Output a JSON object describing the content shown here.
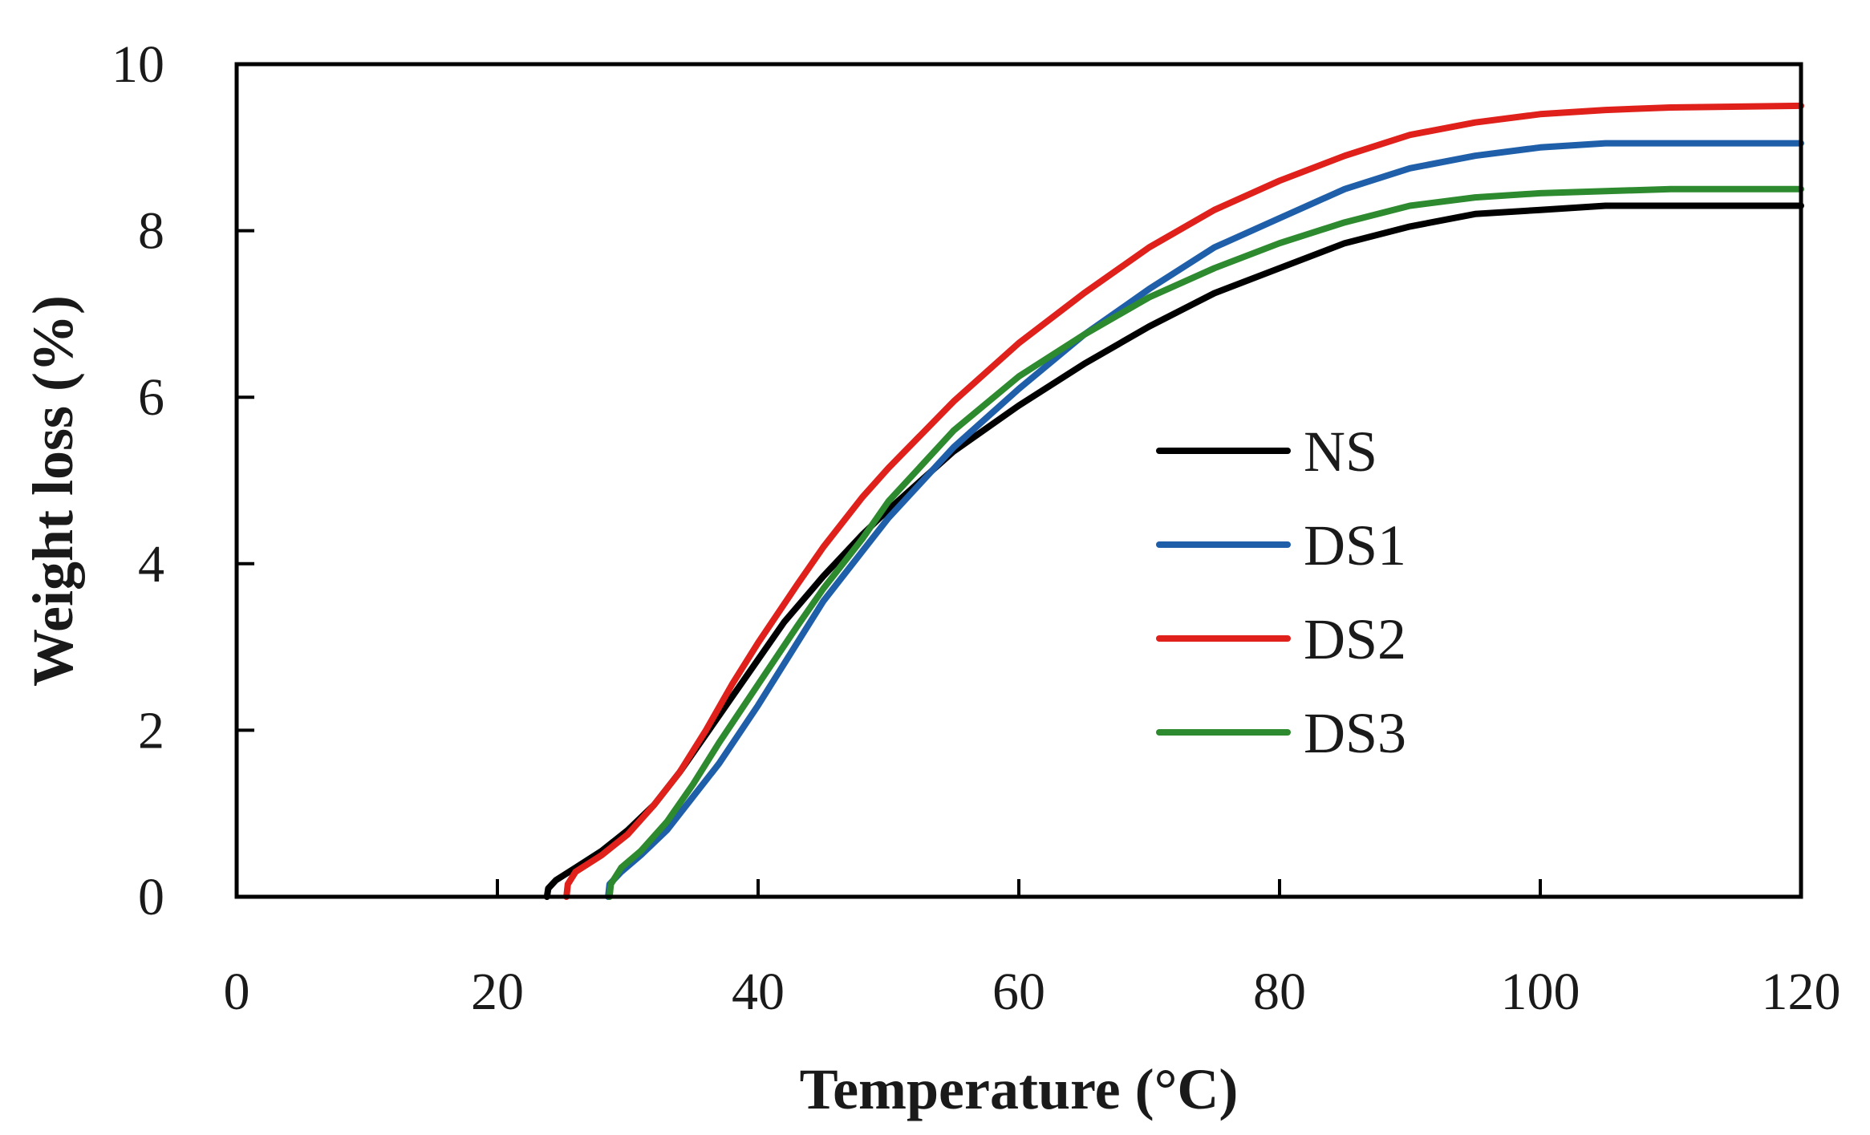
{
  "chart_data": {
    "type": "line",
    "title": "",
    "xlabel": "Temperature (°C)",
    "ylabel": "Weight loss (%)",
    "xlim": [
      0,
      120
    ],
    "ylim": [
      0,
      10
    ],
    "xticks": [
      0,
      20,
      40,
      60,
      80,
      100,
      120
    ],
    "yticks": [
      0,
      2,
      4,
      6,
      8,
      10
    ],
    "xtick_labels": [
      "0",
      "20",
      "40",
      "60",
      "80",
      "100",
      "120"
    ],
    "ytick_labels": [
      "0",
      "2",
      "4",
      "6",
      "8",
      "10"
    ],
    "grid": false,
    "legend": {
      "position": "center-right"
    },
    "series": [
      {
        "name": "NS",
        "color": "#000000",
        "points": [
          [
            23.8,
            0
          ],
          [
            23.9,
            0.1
          ],
          [
            24.5,
            0.2
          ],
          [
            26,
            0.35
          ],
          [
            28,
            0.55
          ],
          [
            30,
            0.8
          ],
          [
            32,
            1.1
          ],
          [
            34,
            1.5
          ],
          [
            36,
            1.95
          ],
          [
            38,
            2.4
          ],
          [
            40,
            2.85
          ],
          [
            42,
            3.3
          ],
          [
            45,
            3.85
          ],
          [
            48,
            4.35
          ],
          [
            50,
            4.65
          ],
          [
            55,
            5.35
          ],
          [
            60,
            5.9
          ],
          [
            65,
            6.4
          ],
          [
            70,
            6.85
          ],
          [
            75,
            7.25
          ],
          [
            80,
            7.55
          ],
          [
            85,
            7.85
          ],
          [
            90,
            8.05
          ],
          [
            95,
            8.2
          ],
          [
            100,
            8.25
          ],
          [
            105,
            8.3
          ],
          [
            110,
            8.3
          ],
          [
            120,
            8.3
          ]
        ]
      },
      {
        "name": "DS1",
        "color": "#1f5faa",
        "points": [
          [
            28.5,
            0
          ],
          [
            28.6,
            0.15
          ],
          [
            29.5,
            0.3
          ],
          [
            31,
            0.5
          ],
          [
            33,
            0.8
          ],
          [
            35,
            1.2
          ],
          [
            37,
            1.6
          ],
          [
            40,
            2.3
          ],
          [
            43,
            3.05
          ],
          [
            45,
            3.55
          ],
          [
            48,
            4.15
          ],
          [
            50,
            4.55
          ],
          [
            55,
            5.4
          ],
          [
            60,
            6.1
          ],
          [
            65,
            6.75
          ],
          [
            70,
            7.3
          ],
          [
            75,
            7.8
          ],
          [
            80,
            8.15
          ],
          [
            85,
            8.5
          ],
          [
            90,
            8.75
          ],
          [
            95,
            8.9
          ],
          [
            100,
            9.0
          ],
          [
            105,
            9.05
          ],
          [
            110,
            9.05
          ],
          [
            120,
            9.05
          ]
        ]
      },
      {
        "name": "DS2",
        "color": "#e0201b",
        "points": [
          [
            25.3,
            0
          ],
          [
            25.4,
            0.15
          ],
          [
            26,
            0.3
          ],
          [
            28,
            0.5
          ],
          [
            30,
            0.75
          ],
          [
            32,
            1.1
          ],
          [
            34,
            1.5
          ],
          [
            36,
            2.0
          ],
          [
            38,
            2.55
          ],
          [
            40,
            3.05
          ],
          [
            43,
            3.75
          ],
          [
            45,
            4.2
          ],
          [
            48,
            4.8
          ],
          [
            50,
            5.15
          ],
          [
            55,
            5.95
          ],
          [
            60,
            6.65
          ],
          [
            65,
            7.25
          ],
          [
            70,
            7.8
          ],
          [
            75,
            8.25
          ],
          [
            80,
            8.6
          ],
          [
            85,
            8.9
          ],
          [
            90,
            9.15
          ],
          [
            95,
            9.3
          ],
          [
            100,
            9.4
          ],
          [
            105,
            9.45
          ],
          [
            110,
            9.48
          ],
          [
            120,
            9.5
          ]
        ]
      },
      {
        "name": "DS3",
        "color": "#2d8a2e",
        "points": [
          [
            28.6,
            0
          ],
          [
            28.7,
            0.15
          ],
          [
            29.5,
            0.35
          ],
          [
            31,
            0.55
          ],
          [
            33,
            0.9
          ],
          [
            35,
            1.35
          ],
          [
            37,
            1.85
          ],
          [
            40,
            2.55
          ],
          [
            43,
            3.25
          ],
          [
            45,
            3.7
          ],
          [
            48,
            4.3
          ],
          [
            50,
            4.75
          ],
          [
            55,
            5.6
          ],
          [
            60,
            6.25
          ],
          [
            65,
            6.75
          ],
          [
            70,
            7.2
          ],
          [
            75,
            7.55
          ],
          [
            80,
            7.85
          ],
          [
            85,
            8.1
          ],
          [
            90,
            8.3
          ],
          [
            95,
            8.4
          ],
          [
            100,
            8.45
          ],
          [
            110,
            8.5
          ],
          [
            120,
            8.5
          ]
        ]
      }
    ]
  }
}
